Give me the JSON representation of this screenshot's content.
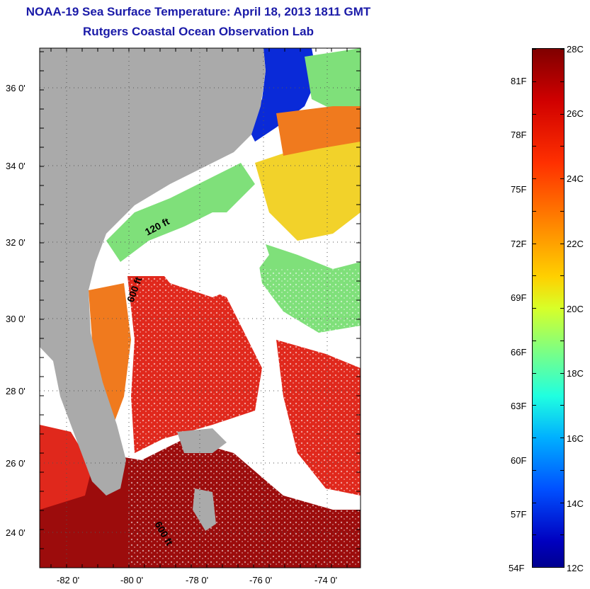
{
  "title": {
    "line1": "NOAA-19 Sea Surface Temperature:  April 18, 2013 1811 GMT",
    "line2": "Rutgers Coastal Ocean Observation Lab"
  },
  "map": {
    "lat_labels": [
      "36 0'",
      "34 0'",
      "32 0'",
      "30 0'",
      "28 0'",
      "26 0'",
      "24 0'"
    ],
    "lon_labels": [
      "-82 0'",
      "-80 0'",
      "-78 0'",
      "-76 0'",
      "-74 0'"
    ],
    "depth_labels": [
      "120 ft",
      "600 ft",
      "600 ft"
    ],
    "colors": {
      "land": "#aaaaaa",
      "no_data": "#ffffff",
      "cold": "#0a2ad8",
      "cool": "#7fe07a",
      "mild": "#f2d22a",
      "warm": "#f07a1e",
      "hot": "#e0281c",
      "hottest": "#9c0c0c"
    }
  },
  "colorbar": {
    "celsius_labels": [
      "28C",
      "26C",
      "24C",
      "22C",
      "20C",
      "18C",
      "16C",
      "14C",
      "12C"
    ],
    "fahrenheit_labels": [
      "81F",
      "78F",
      "75F",
      "72F",
      "69F",
      "66F",
      "63F",
      "60F",
      "57F",
      "54F"
    ],
    "range_c": [
      12,
      28
    ]
  }
}
